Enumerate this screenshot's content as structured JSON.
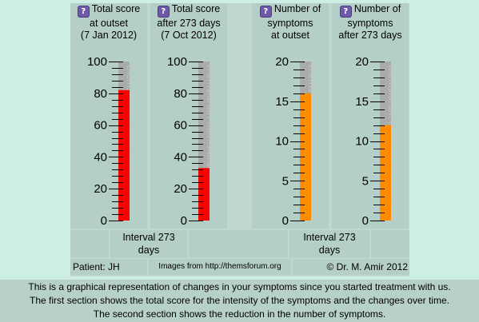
{
  "columns": [
    {
      "lines": [
        "Total score",
        "at outset",
        "(7 Jan 2012)"
      ]
    },
    {
      "lines": [
        "Total score",
        "after 273 days",
        "(7 Oct 2012)"
      ]
    },
    {
      "lines": [
        "Number of",
        "symptoms",
        "at outset"
      ]
    },
    {
      "lines": [
        "Number of",
        "symptoms",
        "after 273 days"
      ]
    }
  ],
  "chart_data": [
    {
      "type": "bar",
      "title": "",
      "ylim": [
        0,
        100
      ],
      "ticks": [
        "0",
        "20",
        "40",
        "60",
        "80",
        "100"
      ],
      "values": [
        82
      ],
      "color": "#ff0000"
    },
    {
      "type": "bar",
      "title": "",
      "ylim": [
        0,
        100
      ],
      "ticks": [
        "0",
        "20",
        "40",
        "60",
        "80",
        "100"
      ],
      "values": [
        33
      ],
      "color": "#ff0000"
    },
    {
      "type": "bar",
      "title": "",
      "ylim": [
        0,
        20
      ],
      "ticks": [
        "0",
        "5",
        "10",
        "15",
        "20"
      ],
      "values": [
        16
      ],
      "color": "#ff8c00"
    },
    {
      "type": "bar",
      "title": "",
      "ylim": [
        0,
        20
      ],
      "ticks": [
        "0",
        "5",
        "10",
        "15",
        "20"
      ],
      "values": [
        12
      ],
      "color": "#ff8c00"
    }
  ],
  "intervals": [
    {
      "line1": "Interval 273",
      "line2": "days"
    },
    {
      "line1": "Interval 273",
      "line2": "days"
    }
  ],
  "footer": {
    "patient": "Patient: JH",
    "source": "Images from http://themsforum.org",
    "copyright": "© Dr. M. Amir 2012"
  },
  "description": [
    "This is a graphical representation of changes in your symptoms since you started treatment with us.",
    "The first section shows the total score for the intensity of the symptoms and the changes over time.",
    "The second section shows the reduction in the number of symptoms."
  ],
  "watermark": "themsforum",
  "colors": {
    "track": "#a9aaaa",
    "tick": "#000000",
    "panel": "#b4cfc7"
  }
}
